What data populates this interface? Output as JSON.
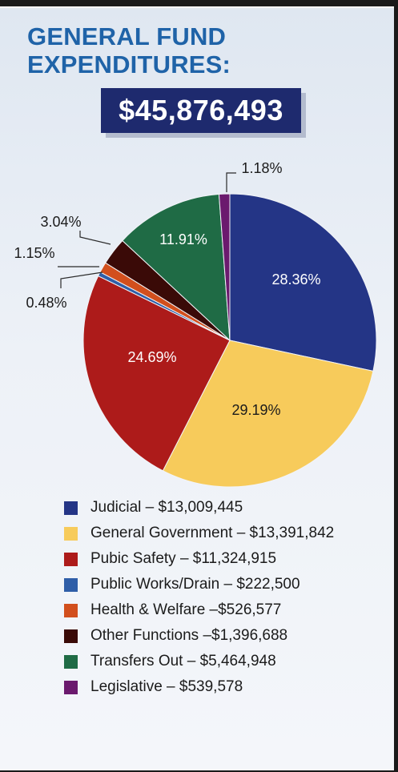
{
  "title_line1": "GENERAL FUND",
  "title_line2": "EXPENDITURES:",
  "total": "$45,876,493",
  "chart_data": {
    "type": "pie",
    "title": "GENERAL FUND EXPENDITURES:",
    "total": "$45,876,493",
    "slices": [
      {
        "label": "Judicial",
        "amount": "$13,009,445",
        "value": 28.36,
        "pct_label": "28.36%",
        "color": "#243586"
      },
      {
        "label": "General Government",
        "amount": "$13,391,842",
        "value": 29.19,
        "pct_label": "29.19%",
        "color": "#f7cb5b"
      },
      {
        "label": "Pubic Safety",
        "amount": "$11,324,915",
        "value": 24.69,
        "pct_label": "24.69%",
        "color": "#ad1b1a"
      },
      {
        "label": "Public Works/Drain",
        "amount": "$222,500",
        "value": 0.48,
        "pct_label": "0.48%",
        "color": "#2f5ea8"
      },
      {
        "label": "Health & Welfare",
        "amount": "$526,577",
        "value": 1.15,
        "pct_label": "1.15%",
        "color": "#d24f1d"
      },
      {
        "label": "Other Functions",
        "amount": "$1,396,688",
        "value": 3.04,
        "pct_label": "3.04%",
        "color": "#3a0a07"
      },
      {
        "label": "Transfers Out",
        "amount": "$5,464,948",
        "value": 11.91,
        "pct_label": "11.91%",
        "color": "#1f6b45"
      },
      {
        "label": "Legislative",
        "amount": "$539,578",
        "value": 1.18,
        "pct_label": "1.18%",
        "color": "#6b1a6e"
      }
    ],
    "legend": [
      "Judicial – $13,009,445",
      "General Government – $13,391,842",
      "Pubic Safety – $11,324,915",
      "Public Works/Drain – $222,500",
      "Health & Welfare –$526,577",
      "Other Functions –$1,396,688",
      "Transfers Out – $5,464,948",
      "Legislative – $539,578"
    ]
  }
}
